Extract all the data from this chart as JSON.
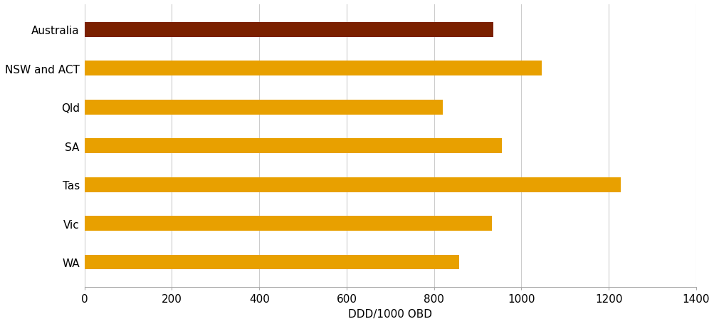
{
  "categories": [
    "Australia",
    "NSW and ACT",
    "Qld",
    "SA",
    "Tas",
    "Vic",
    "WA"
  ],
  "values": [
    936,
    1047,
    820,
    956,
    1228,
    933,
    857
  ],
  "bar_colors": [
    "#7B2000",
    "#E8A000",
    "#E8A000",
    "#E8A000",
    "#E8A000",
    "#E8A000",
    "#E8A000"
  ],
  "xlabel": "DDD/1000 OBD",
  "xlim": [
    0,
    1400
  ],
  "xticks": [
    0,
    200,
    400,
    600,
    800,
    1000,
    1200,
    1400
  ],
  "background_color": "#ffffff",
  "grid_color": "#cccccc",
  "bar_height": 0.38,
  "figsize": [
    10.04,
    4.56
  ],
  "dpi": 100,
  "label_fontsize": 11,
  "xlabel_fontsize": 11
}
